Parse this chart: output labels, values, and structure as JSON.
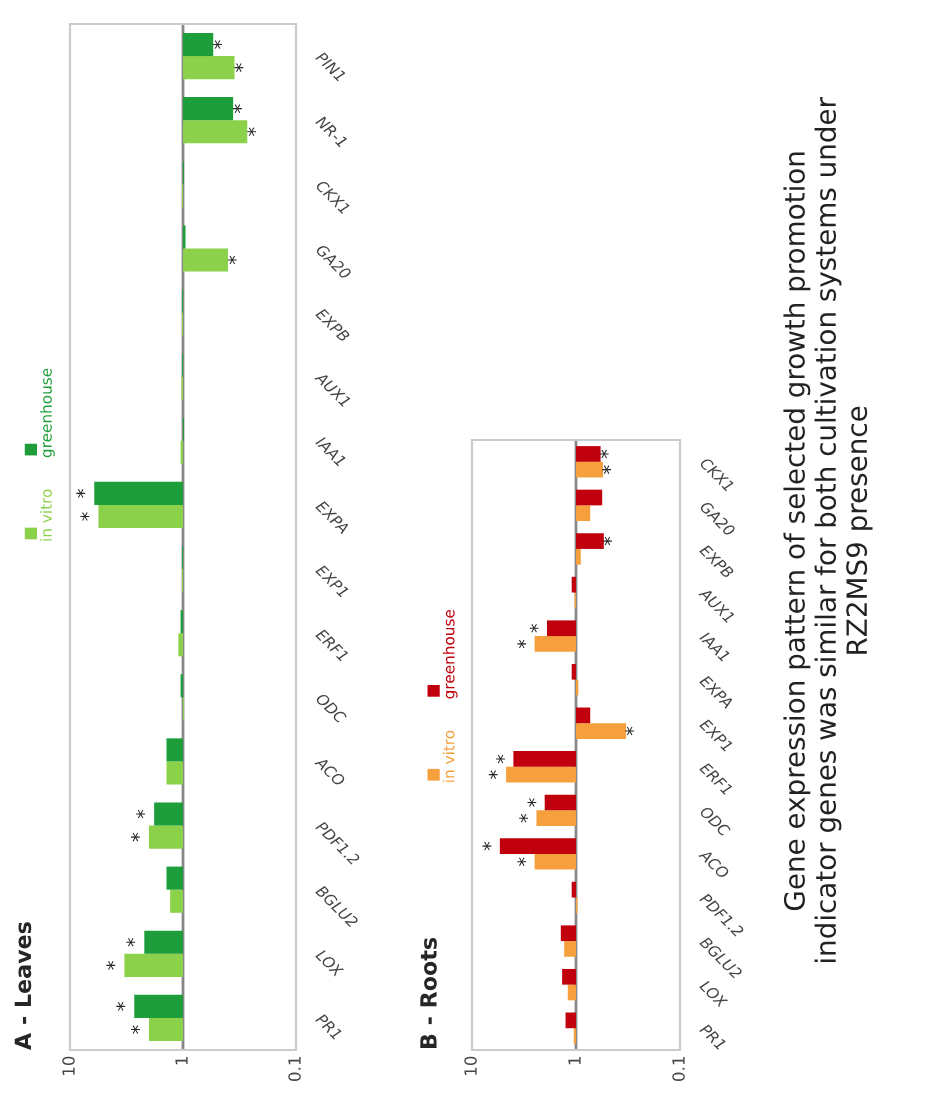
{
  "chart_data": [
    {
      "type": "bar",
      "orientation": "horizontal",
      "title": "A - Leaves",
      "log": "x",
      "xlim": [
        10,
        0.1
      ],
      "xticks": [
        10,
        1,
        0.1
      ],
      "legend": "left",
      "categories": [
        "PIN1",
        "NR-1",
        "CKX1",
        "GA20",
        "EXPB",
        "AUX1",
        "IAA1",
        "EXPA",
        "EXP1",
        "ERF1",
        "ODC",
        "ACO",
        "PDF1.2",
        "BGLU2",
        "LOX",
        "PR1"
      ],
      "ref_lines": [
        {
          "axis": "x",
          "value": 1,
          "label": null
        }
      ],
      "series": [
        {
          "name": "in vitro",
          "color": "#8cd14a",
          "base": [
            1,
            1,
            1,
            1,
            1,
            1,
            1,
            1,
            1,
            1,
            1,
            1,
            1,
            1,
            1,
            1
          ],
          "values": [
            -0.65,
            -0.73,
            0.02,
            -0.6,
            0.02,
            0.03,
            0.05,
            4.6,
            0.02,
            0.1,
            -0.02,
            0.4,
            1.0,
            0.3,
            2.3,
            1.0
          ],
          "value_labels": [
            "*",
            "*",
            null,
            "*",
            null,
            null,
            null,
            "*",
            null,
            null,
            null,
            null,
            "*",
            null,
            "*",
            "*"
          ]
        },
        {
          "name": "greenhouse",
          "color": "#1e9e3a",
          "base": [
            1,
            1,
            1,
            1,
            1,
            1,
            1,
            1,
            1,
            1,
            1,
            1,
            1,
            1,
            1,
            1
          ],
          "values": [
            -0.46,
            -0.64,
            -0.02,
            -0.05,
            0.02,
            0.02,
            -0.02,
            5.1,
            0.02,
            0.05,
            0.05,
            0.4,
            0.8,
            0.4,
            1.2,
            1.7
          ],
          "value_labels": [
            "*",
            "*",
            null,
            null,
            null,
            null,
            null,
            "*",
            null,
            null,
            null,
            null,
            "*",
            null,
            "*",
            "*"
          ]
        }
      ]
    },
    {
      "type": "bar",
      "orientation": "horizontal",
      "title": "B - Roots",
      "log": "x",
      "xlim": [
        10,
        0.1
      ],
      "xticks": [
        10,
        1,
        0.1
      ],
      "legend": "left",
      "categories": [
        "CKX1",
        "GA20",
        "EXPB",
        "AUX1",
        "IAA1",
        "EXPA",
        "EXP1",
        "ERF1",
        "ODC",
        "ACO",
        "PDF1.2",
        "BGLU2",
        "LOX",
        "PR1"
      ],
      "ref_lines": [
        {
          "axis": "x",
          "value": 1,
          "label": null
        }
      ],
      "annotations": [
        "Gene expression pattern of selected growth promotion\nindicator genes was similar for both cultivation systems under\nRZ2MS9 presence"
      ],
      "series": [
        {
          "name": "in vitro",
          "color": "#f5a03c",
          "base": [
            1,
            1,
            1,
            1,
            1,
            1,
            1,
            1,
            1,
            1,
            1,
            1,
            1,
            1
          ],
          "values": [
            -0.45,
            -0.27,
            -0.1,
            0.03,
            1.5,
            -0.05,
            -0.67,
            3.7,
            1.4,
            1.5,
            -0.03,
            0.3,
            0.2,
            0.05
          ],
          "value_labels": [
            "*",
            null,
            null,
            null,
            "*",
            null,
            "*",
            "*",
            "*",
            "*",
            null,
            null,
            null,
            null
          ]
        },
        {
          "name": "greenhouse",
          "color": "#c0000c",
          "base": [
            1,
            1,
            1,
            1,
            1,
            1,
            1,
            1,
            1,
            1,
            1,
            1,
            1,
            1
          ],
          "values": [
            -0.42,
            -0.44,
            -0.46,
            0.1,
            0.9,
            0.1,
            -0.27,
            3.0,
            1.0,
            4.4,
            0.1,
            0.4,
            0.36,
            0.26
          ],
          "value_labels": [
            "*",
            null,
            "*",
            null,
            "*",
            null,
            null,
            "*",
            "*",
            "*",
            null,
            null,
            null,
            null
          ]
        }
      ]
    }
  ]
}
